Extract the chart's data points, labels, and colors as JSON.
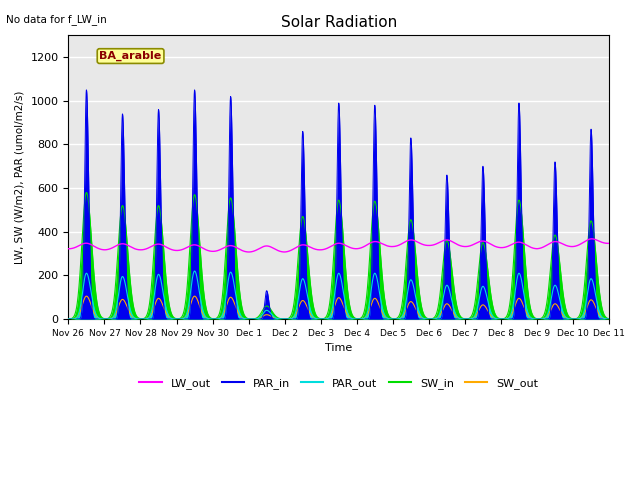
{
  "title": "Solar Radiation",
  "annotation_top_left": "No data for f_LW_in",
  "box_label": "BA_arable",
  "ylabel": "LW, SW (W/m2), PAR (umol/m2/s)",
  "xlabel": "Time",
  "ylim": [
    0,
    1300
  ],
  "xlim": [
    0,
    360
  ],
  "plot_bg_color": "#e8e8e8",
  "fig_bg_color": "#ffffff",
  "tick_labels": [
    "Nov 26",
    "Nov 27",
    "Nov 28",
    "Nov 29",
    "Nov 30",
    "Dec 1",
    "Dec 2",
    "Dec 3",
    "Dec 4",
    "Dec 5",
    "Dec 6",
    "Dec 7",
    "Dec 8",
    "Dec 9",
    "Dec 10",
    "Dec 11"
  ],
  "tick_positions": [
    0,
    24,
    48,
    72,
    96,
    120,
    144,
    168,
    192,
    216,
    240,
    264,
    288,
    312,
    336,
    360
  ],
  "lw_out_color": "#ff00ff",
  "par_in_color": "#0000ee",
  "par_out_color": "#00dddd",
  "sw_in_color": "#00dd00",
  "sw_out_color": "#ffaa00",
  "par_in_peaks": [
    [
      0,
      1050
    ],
    [
      24,
      940
    ],
    [
      48,
      960
    ],
    [
      72,
      1050
    ],
    [
      96,
      1020
    ],
    [
      120,
      130
    ],
    [
      144,
      860
    ],
    [
      168,
      990
    ],
    [
      192,
      980
    ],
    [
      216,
      830
    ],
    [
      240,
      660
    ],
    [
      264,
      700
    ],
    [
      288,
      990
    ],
    [
      312,
      720
    ],
    [
      336,
      870
    ]
  ],
  "sw_in_peaks": [
    [
      0,
      580
    ],
    [
      24,
      520
    ],
    [
      48,
      520
    ],
    [
      72,
      570
    ],
    [
      96,
      555
    ],
    [
      120,
      60
    ],
    [
      144,
      470
    ],
    [
      168,
      545
    ],
    [
      192,
      540
    ],
    [
      216,
      455
    ],
    [
      240,
      360
    ],
    [
      264,
      350
    ],
    [
      288,
      545
    ],
    [
      312,
      385
    ],
    [
      336,
      450
    ]
  ],
  "par_out_peaks": [
    [
      0,
      210
    ],
    [
      24,
      195
    ],
    [
      48,
      205
    ],
    [
      72,
      220
    ],
    [
      96,
      215
    ],
    [
      120,
      40
    ],
    [
      144,
      185
    ],
    [
      168,
      210
    ],
    [
      192,
      210
    ],
    [
      216,
      180
    ],
    [
      240,
      155
    ],
    [
      264,
      150
    ],
    [
      288,
      210
    ],
    [
      312,
      155
    ],
    [
      336,
      185
    ]
  ],
  "sw_out_peaks": [
    [
      0,
      105
    ],
    [
      24,
      90
    ],
    [
      48,
      95
    ],
    [
      72,
      105
    ],
    [
      96,
      100
    ],
    [
      120,
      20
    ],
    [
      144,
      85
    ],
    [
      168,
      98
    ],
    [
      192,
      95
    ],
    [
      216,
      80
    ],
    [
      240,
      70
    ],
    [
      264,
      65
    ],
    [
      288,
      95
    ],
    [
      312,
      70
    ],
    [
      336,
      88
    ]
  ]
}
